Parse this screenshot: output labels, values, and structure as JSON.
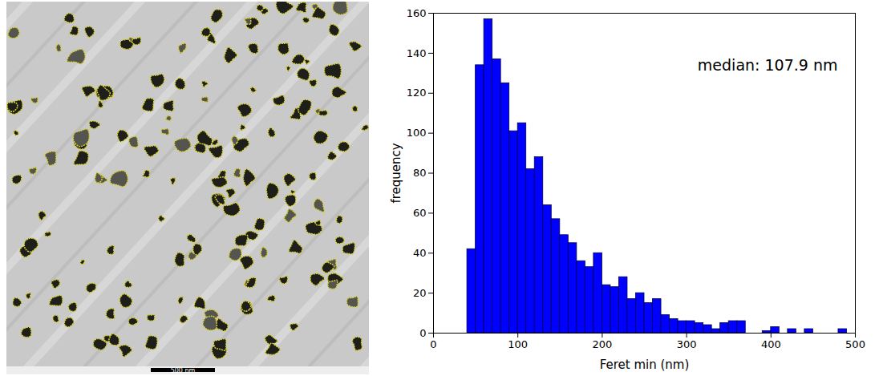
{
  "image": {
    "scale_bar_label": "500 nm"
  },
  "chart_data": {
    "type": "histogram",
    "bins": [
      40,
      50,
      60,
      70,
      80,
      90,
      100,
      110,
      120,
      130,
      140,
      150,
      160,
      170,
      180,
      190,
      200,
      210,
      220,
      230,
      240,
      250,
      260,
      270,
      280,
      290,
      300,
      310,
      320,
      330,
      340,
      350,
      360,
      370,
      380,
      390,
      400,
      410,
      420,
      430,
      440,
      450,
      460,
      470,
      480,
      490
    ],
    "values": [
      42,
      134,
      157,
      137,
      125,
      101,
      105,
      82,
      88,
      64,
      57,
      49,
      45,
      36,
      33,
      40,
      24,
      23,
      28,
      17,
      20,
      15,
      17,
      9,
      7,
      6,
      6,
      5,
      4,
      2,
      5,
      6,
      6,
      0,
      0,
      1,
      3,
      0,
      2,
      0,
      2,
      0,
      0,
      0,
      2
    ],
    "color": "#0000ff",
    "x_label": "Feret min (nm)",
    "y_label": "frequency",
    "annotation": "median: 107.9 nm",
    "xlim": [
      0,
      500
    ],
    "xticks": [
      0,
      100,
      200,
      300,
      400,
      500
    ],
    "ylim": [
      0,
      160
    ],
    "yticks": [
      0,
      20,
      40,
      60,
      80,
      100,
      120,
      140,
      160
    ],
    "grid": false
  }
}
